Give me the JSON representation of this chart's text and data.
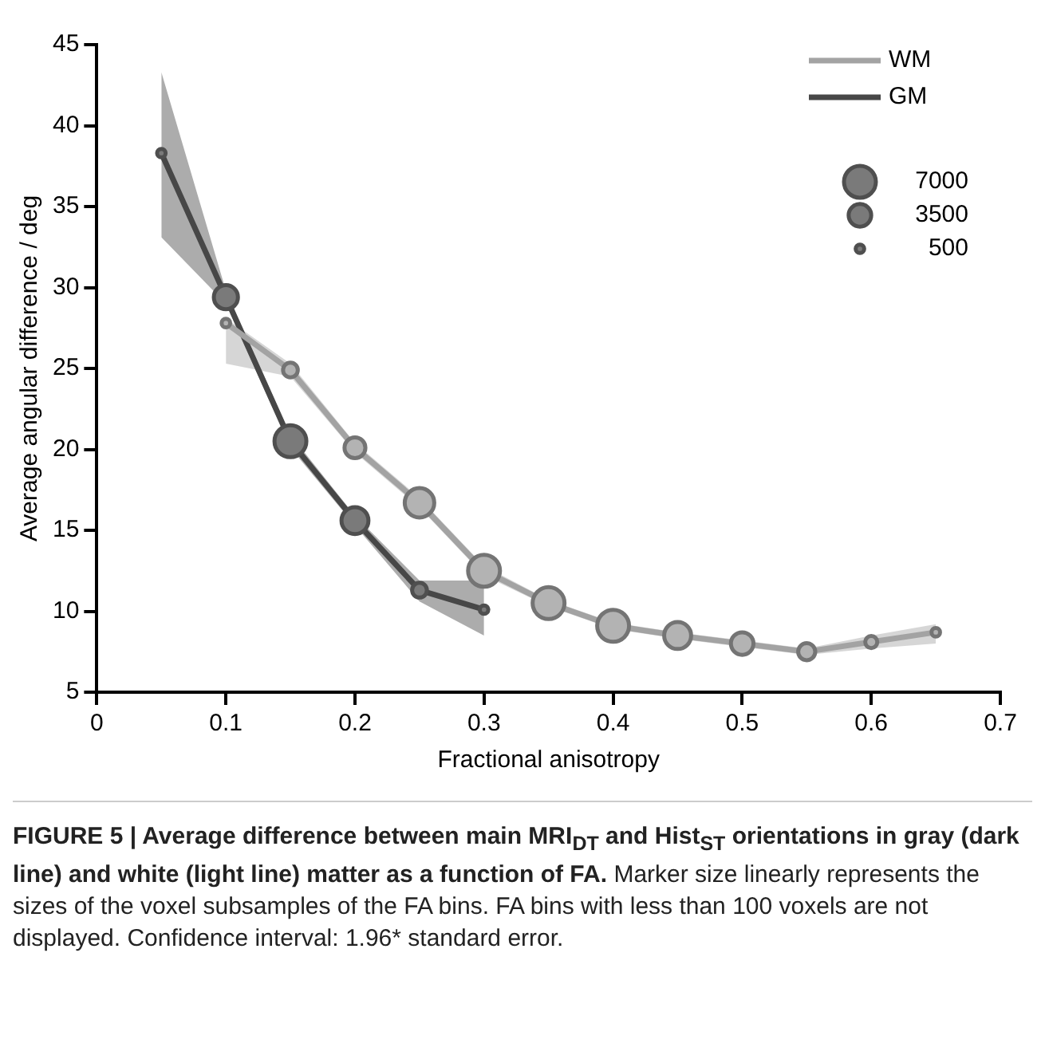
{
  "chart_data": {
    "type": "bubble",
    "title": "FIGURE 5 | Average difference between main MRI$_{DT}$ and Hist$_{ST}$ orientations in gray (dark line) and white (light line) matter as a function of FA.",
    "annotations": [
      "Marker size linearly represents the sizes of the voxel subsamples of the FA bins. FA bins with less than 100 voxels are not displayed. Confidence interval: 1.96* standard error."
    ],
    "xlabel": "Fractional anisotropy",
    "ylabel": "Average angular difference / deg",
    "xlim": [
      0,
      0.7
    ],
    "xticks": [
      0,
      0.1,
      0.2,
      0.3,
      0.4,
      0.5,
      0.6,
      0.7
    ],
    "ylim": [
      5,
      45
    ],
    "yticks": [
      5,
      10,
      15,
      20,
      25,
      30,
      35,
      40,
      45
    ],
    "grid": false,
    "legend": "top right",
    "size_legend": [
      7000,
      3500,
      500
    ],
    "series": [
      {
        "name": "WM",
        "type": "line",
        "color": "#a3a3a3",
        "x": [
          0.1,
          0.15,
          0.2,
          0.25,
          0.3,
          0.35,
          0.4,
          0.45,
          0.5,
          0.55,
          0.6,
          0.65
        ],
        "values": [
          27.8,
          24.9,
          20.1,
          16.7,
          12.5,
          10.5,
          9.1,
          8.5,
          8.0,
          7.5,
          8.1,
          8.7
        ],
        "lower": [
          25.3,
          24.5,
          19.8,
          16.4,
          12.2,
          10.3,
          8.9,
          8.3,
          7.8,
          7.3,
          7.7,
          8.0
        ],
        "upper": [
          28.1,
          25.3,
          20.4,
          17.0,
          12.8,
          10.7,
          9.3,
          8.7,
          8.2,
          7.7,
          8.5,
          9.2
        ]
      },
      {
        "name": "GM",
        "type": "line",
        "color": "#474747",
        "x": [
          0.05,
          0.1,
          0.15,
          0.2,
          0.25,
          0.3
        ],
        "values": [
          38.3,
          29.4,
          20.5,
          15.6,
          11.3,
          10.1
        ],
        "lower": [
          33.1,
          29.0,
          20.1,
          15.3,
          10.6,
          8.5
        ],
        "upper": [
          43.3,
          29.8,
          20.9,
          15.9,
          11.9,
          11.9
        ]
      },
      {
        "color": "#b3b3b3",
        "x": [
          0.1,
          0.15,
          0.2,
          0.25,
          0.3,
          0.35,
          0.4,
          0.45,
          0.5,
          0.55,
          0.6,
          0.65
        ],
        "values": [
          27.8,
          24.9,
          20.1,
          16.7,
          12.5,
          10.5,
          9.1,
          8.5,
          8.0,
          7.5,
          8.1,
          8.7
        ],
        "sizes": [
          500,
          1500,
          3000,
          6000,
          7000,
          7000,
          7000,
          5000,
          3500,
          2000,
          1000,
          500
        ]
      },
      {
        "color": "#7a7a7a",
        "x": [
          0.05,
          0.1,
          0.15,
          0.2,
          0.25,
          0.3
        ],
        "values": [
          38.3,
          29.4,
          20.5,
          15.6,
          11.3,
          10.1
        ],
        "sizes": [
          500,
          4000,
          7000,
          5000,
          1500,
          500
        ]
      }
    ]
  }
}
